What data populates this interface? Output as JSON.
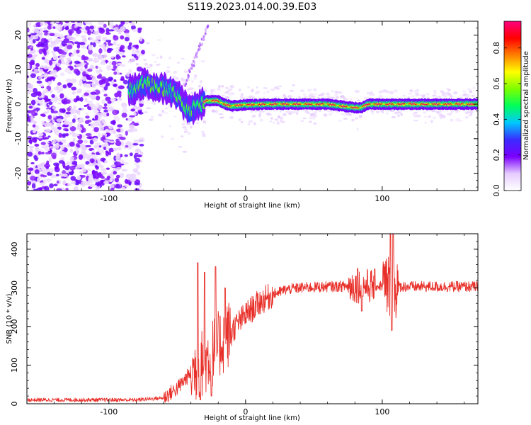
{
  "figure": {
    "title": "S119.2023.014.00.39.E03",
    "colors": {
      "snr_line": "#e8302a",
      "axis": "#000000"
    }
  },
  "chart_data": [
    {
      "type": "heatmap",
      "name": "spectrogram",
      "xlabel": "Height of straight line (km)",
      "ylabel": "Frequency (Hz)",
      "xlim": [
        -160,
        170
      ],
      "ylim": [
        -25,
        24
      ],
      "x_ticks": [
        -100,
        0,
        100
      ],
      "x_tick_labels": [
        "-100",
        "0",
        "100"
      ],
      "y_ticks": [
        -20,
        -10,
        0,
        10,
        20
      ],
      "y_tick_labels": [
        "-20",
        "-10",
        "0",
        "10",
        "20"
      ],
      "colorbar": {
        "label": "Normalized spectral amplitude",
        "range": [
          0,
          0.95
        ],
        "ticks": [
          0.0,
          0.2,
          0.4,
          0.6,
          0.8
        ],
        "tick_labels": [
          "0.0",
          "0.2",
          "0.4",
          "0.6",
          "0.8"
        ],
        "colormap": [
          "#ffffff",
          "#e6ccff",
          "#7b00ff",
          "#3a2bff",
          "#00c8ff",
          "#00ff5a",
          "#7cff00",
          "#ffff00",
          "#ff7f00",
          "#ff0000",
          "#ff0080"
        ]
      },
      "ridge": [
        [
          -82,
          4
        ],
        [
          -75,
          6
        ],
        [
          -65,
          5
        ],
        [
          -55,
          4
        ],
        [
          -48,
          2
        ],
        [
          -42,
          -2
        ],
        [
          -38,
          -1
        ],
        [
          -33,
          0
        ],
        [
          -28,
          1
        ],
        [
          -20,
          1
        ],
        [
          -15,
          0
        ],
        [
          -10,
          -0.5
        ],
        [
          0,
          -0.2
        ],
        [
          20,
          0
        ],
        [
          40,
          0
        ],
        [
          60,
          0
        ],
        [
          70,
          -0.5
        ],
        [
          80,
          -1
        ],
        [
          85,
          -1
        ],
        [
          90,
          0
        ],
        [
          100,
          0
        ],
        [
          120,
          0
        ],
        [
          140,
          0
        ],
        [
          160,
          0
        ],
        [
          170,
          0
        ]
      ],
      "grid": false
    },
    {
      "type": "line",
      "name": "snr",
      "xlabel": "Height of straight line (km)",
      "ylabel": "SNR (10 * v/v)",
      "xlim": [
        -160,
        170
      ],
      "ylim": [
        0,
        440
      ],
      "x_ticks": [
        -100,
        0,
        100
      ],
      "x_tick_labels": [
        "-100",
        "0",
        "100"
      ],
      "y_ticks": [
        0,
        100,
        200,
        300,
        400
      ],
      "y_tick_labels": [
        "0",
        "100",
        "200",
        "300",
        "400"
      ],
      "envelope": [
        [
          -160,
          10
        ],
        [
          -80,
          10
        ],
        [
          -60,
          15
        ],
        [
          -50,
          40
        ],
        [
          -40,
          80
        ],
        [
          -30,
          110
        ],
        [
          -20,
          150
        ],
        [
          -10,
          190
        ],
        [
          0,
          230
        ],
        [
          10,
          262
        ],
        [
          20,
          283
        ],
        [
          30,
          296
        ],
        [
          40,
          300
        ],
        [
          60,
          303
        ],
        [
          80,
          305
        ],
        [
          100,
          305
        ],
        [
          120,
          303
        ],
        [
          170,
          303
        ]
      ],
      "spikes": [
        [
          -35,
          365
        ],
        [
          -30,
          340
        ],
        [
          -22,
          355
        ],
        [
          -15,
          300
        ],
        [
          82,
          350
        ],
        [
          106,
          440
        ],
        [
          108,
          440
        ]
      ],
      "dips": [
        [
          -33,
          10
        ],
        [
          -25,
          20
        ],
        [
          85,
          240
        ],
        [
          107,
          190
        ]
      ],
      "grid": false
    }
  ]
}
